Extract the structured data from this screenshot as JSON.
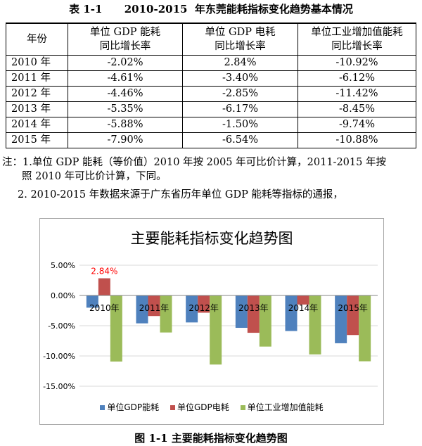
{
  "table_caption": "表 1-1      2010-2015  年东莞能耗指标变化趋势基本情况",
  "table": {
    "headers": {
      "year": "年份",
      "gdp_energy": [
        "单位 GDP 能耗",
        "同比增长率"
      ],
      "gdp_electricity": [
        "单位 GDP 电耗",
        "同比增长率"
      ],
      "industrial_energy": [
        "单位工业增加值能耗",
        "同比增长率"
      ]
    },
    "rows": [
      {
        "year": "2010 年",
        "gdp_energy": "-2.02%",
        "gdp_electricity": "2.84%",
        "industrial_energy": "-10.92%"
      },
      {
        "year": "2011 年",
        "gdp_energy": "-4.61%",
        "gdp_electricity": "-3.40%",
        "industrial_energy": "-6.12%"
      },
      {
        "year": "2012 年",
        "gdp_energy": "-4.46%",
        "gdp_electricity": "-2.85%",
        "industrial_energy": "-11.42%"
      },
      {
        "year": "2013 年",
        "gdp_energy": "-5.35%",
        "gdp_electricity": "-6.17%",
        "industrial_energy": "-8.45%"
      },
      {
        "year": "2014 年",
        "gdp_energy": "-5.88%",
        "gdp_electricity": "-1.50%",
        "industrial_energy": "-9.74%"
      },
      {
        "year": "2015 年",
        "gdp_energy": "-7.90%",
        "gdp_electricity": "-6.54%",
        "industrial_energy": "-10.88%"
      }
    ]
  },
  "notes": {
    "line1": "注：1.单位 GDP 能耗（等价值）2010 年按 2005 年可比价计算，2011-2015 年按",
    "line2": "照 2010 年可比价计算，下同。",
    "line3": "2. 2010-2015 年数据来源于广东省历年单位  GDP  能耗等指标的通报，"
  },
  "figure_caption": "图  1-1  主要能耗指标变化趋势图",
  "chart_data": {
    "type": "bar",
    "title": "主要能耗指标变化趋势图",
    "categories": [
      "2010年",
      "2011年",
      "2012年",
      "2013年",
      "2014年",
      "2015年"
    ],
    "series": [
      {
        "name": "单位GDP能耗",
        "color": "#4f81bd",
        "values": [
          -2.02,
          -4.61,
          -4.46,
          -5.35,
          -5.88,
          -7.9
        ]
      },
      {
        "name": "单位GDP电耗",
        "color": "#c0504d",
        "values": [
          2.84,
          -3.4,
          -2.85,
          -6.17,
          -1.5,
          -6.54
        ]
      },
      {
        "name": "单位工业增加值能耗",
        "color": "#9bbb59",
        "values": [
          -10.92,
          -6.12,
          -11.42,
          -8.45,
          -9.74,
          -10.88
        ]
      }
    ],
    "ylim": [
      -15,
      5
    ],
    "yticks": [
      5,
      0,
      -5,
      -10,
      -15
    ],
    "ytick_labels": [
      "5.00%",
      "0.00%",
      "-5.00%",
      "-10.00%",
      "-15.00%"
    ],
    "gridlines": true,
    "data_labels": [
      {
        "series": 1,
        "category": 0,
        "text": "2.84%",
        "color": "#ff0000"
      }
    ],
    "legend_position": "bottom"
  }
}
